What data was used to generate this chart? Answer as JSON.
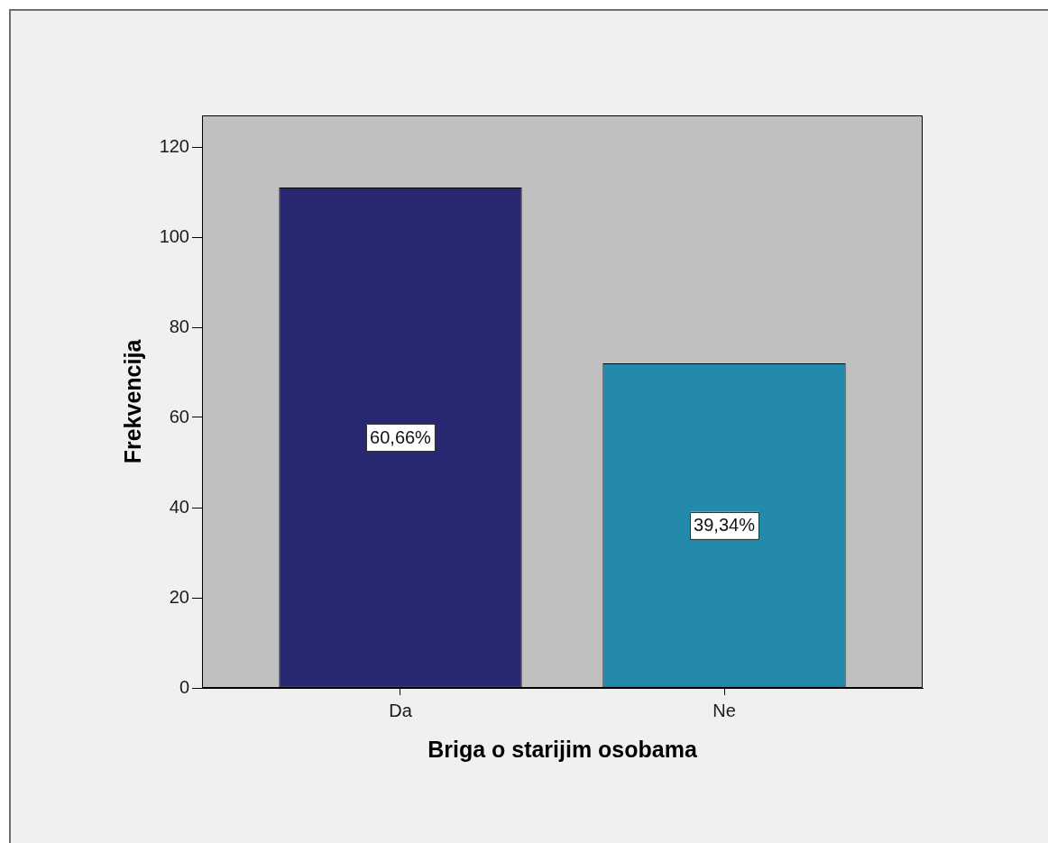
{
  "chart_data": {
    "type": "bar",
    "xlabel": "Briga o starijim osobama",
    "ylabel": "Frekvencija",
    "categories": [
      "Da",
      "Ne"
    ],
    "values": [
      111,
      72
    ],
    "colors": [
      "#282872",
      "#238aac"
    ],
    "annotations": [
      "60,66%",
      "39,34%"
    ],
    "ylim": [
      0,
      127
    ],
    "yticks": [
      0,
      20,
      40,
      60,
      80,
      100,
      120
    ],
    "grid": false,
    "legend": false
  }
}
